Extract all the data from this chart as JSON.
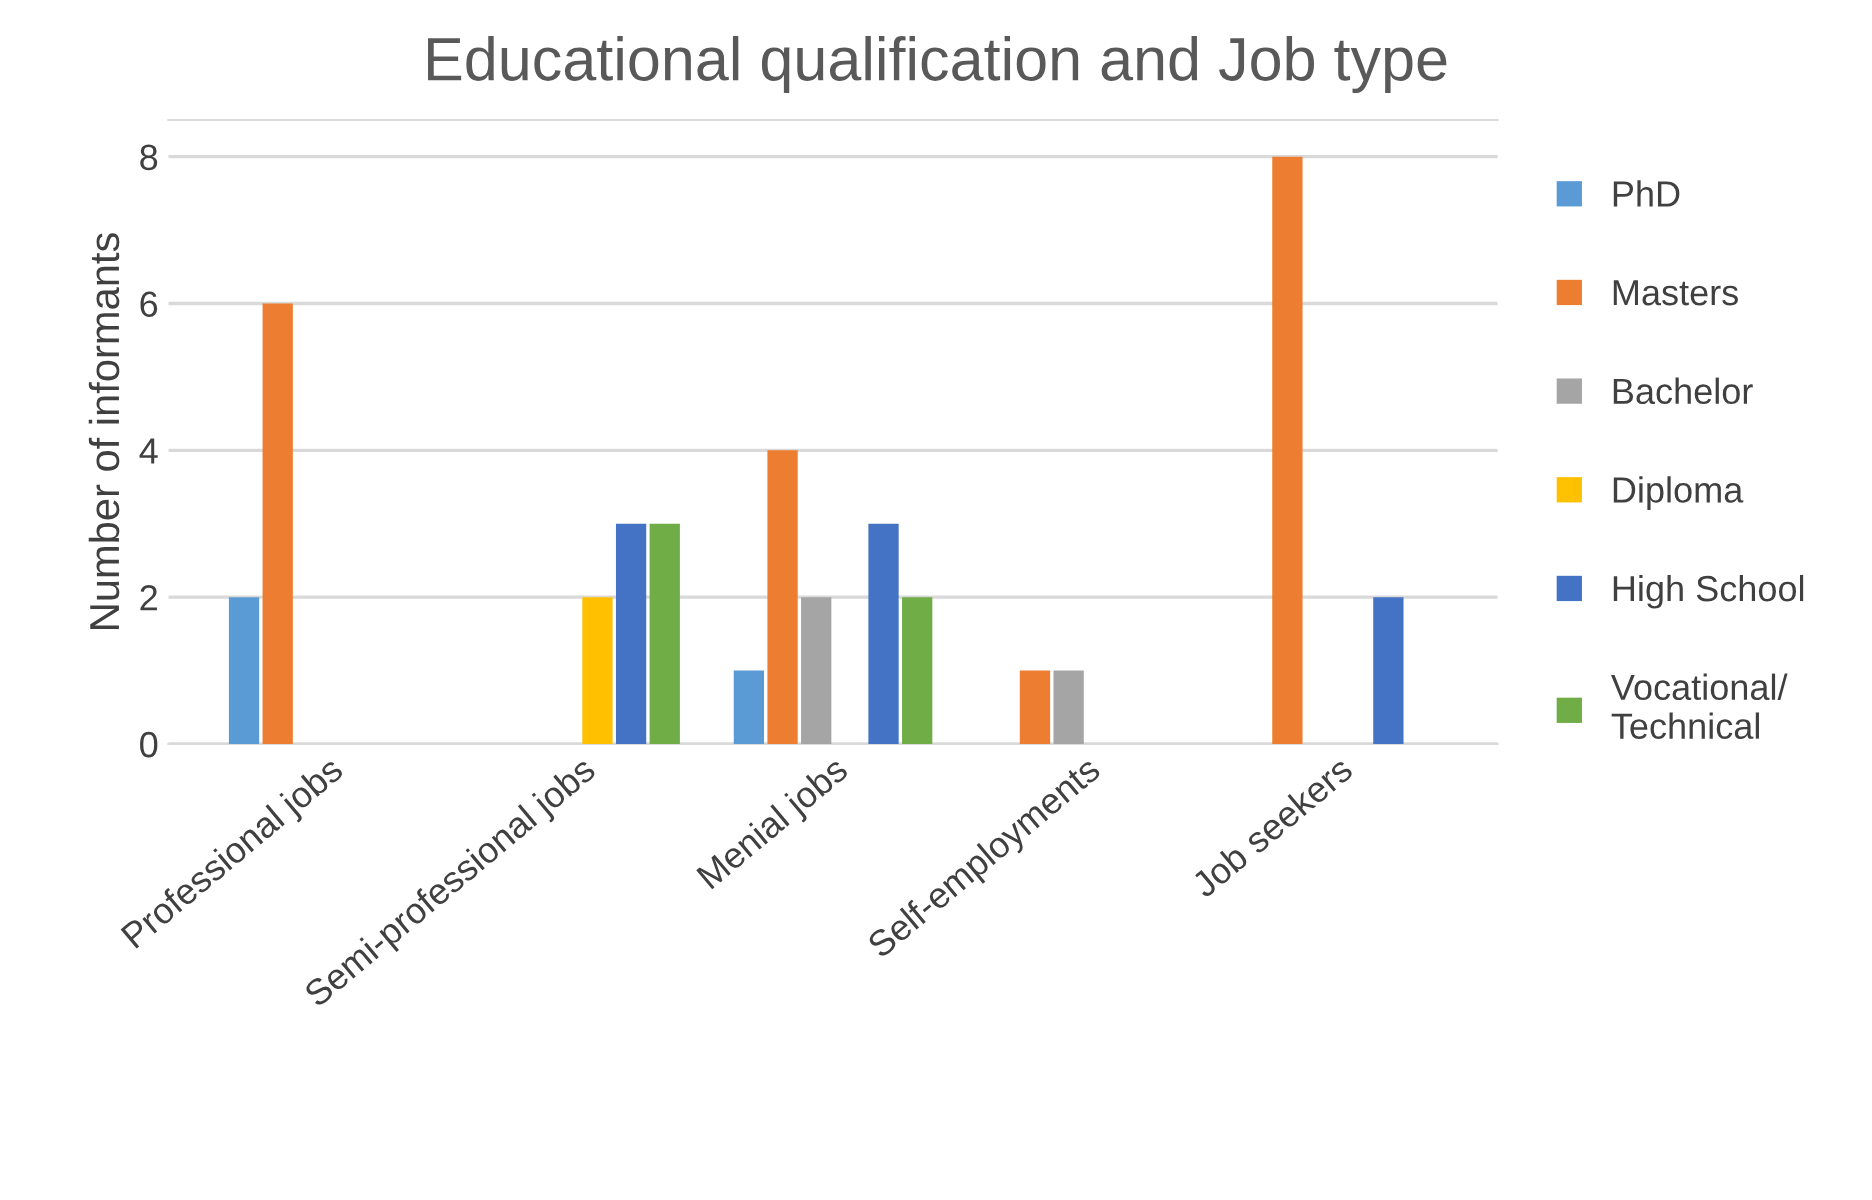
{
  "chart_data": {
    "type": "bar",
    "title": "Educational qualification and Job type",
    "ylabel": "Number of informants",
    "categories": [
      "Professional jobs",
      "Semi-professional jobs",
      "Menial jobs",
      "Self-employments",
      "Job seekers"
    ],
    "series": [
      {
        "name": "PhD",
        "color": "#5b9bd5",
        "values": [
          2,
          0,
          1,
          0,
          0
        ]
      },
      {
        "name": "Masters",
        "color": "#ed7d31",
        "values": [
          6,
          0,
          4,
          1,
          8
        ]
      },
      {
        "name": "Bachelor",
        "color": "#a5a5a5",
        "values": [
          0,
          0,
          2,
          1,
          0
        ]
      },
      {
        "name": "Diploma",
        "color": "#ffc000",
        "values": [
          0,
          2,
          0,
          0,
          0
        ]
      },
      {
        "name": "High School",
        "color": "#4472c4",
        "values": [
          0,
          3,
          3,
          0,
          2
        ]
      },
      {
        "name": "Vocational/\nTechnical",
        "color": "#70ad47",
        "values": [
          0,
          3,
          2,
          0,
          0
        ]
      }
    ],
    "ylim": [
      0,
      8.5
    ],
    "yticks": [
      0,
      2,
      4,
      6,
      8
    ],
    "grid": "y",
    "legend": "right"
  }
}
